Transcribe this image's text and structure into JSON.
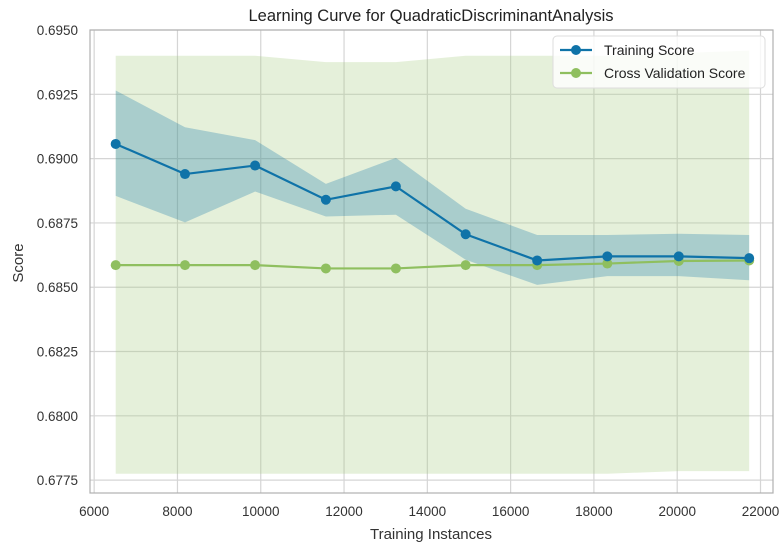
{
  "chart_data": {
    "type": "line",
    "title": "Learning Curve for QuadraticDiscriminantAnalysis",
    "xlabel": "Training Instances",
    "ylabel": "Score",
    "xlim": [
      5900,
      22300
    ],
    "ylim": [
      0.677,
      0.695
    ],
    "xticks": [
      6000,
      8000,
      10000,
      12000,
      14000,
      16000,
      18000,
      20000,
      22000
    ],
    "yticks": [
      0.6775,
      0.68,
      0.6825,
      0.685,
      0.6875,
      0.69,
      0.6925,
      0.695
    ],
    "grid": true,
    "legend_position": "top-right",
    "x": [
      6517,
      8181,
      9864,
      11564,
      13245,
      14920,
      16637,
      18322,
      20037,
      21728
    ],
    "series": [
      {
        "name": "Training Score",
        "color": "#0f73a8",
        "band_color": "#0f73a8",
        "values": [
          0.69057,
          0.6894,
          0.68973,
          0.6884,
          0.68892,
          0.68706,
          0.68604,
          0.6862,
          0.6862,
          0.68613
        ],
        "upper": [
          0.69265,
          0.69122,
          0.69072,
          0.68902,
          0.69003,
          0.68805,
          0.68703,
          0.68703,
          0.68708,
          0.68703
        ],
        "lower": [
          0.68855,
          0.68752,
          0.68872,
          0.68775,
          0.68782,
          0.68607,
          0.68509,
          0.68543,
          0.68543,
          0.68527
        ]
      },
      {
        "name": "Cross Validation Score",
        "color": "#8fbf5f",
        "band_color": "#a8cc84",
        "values": [
          0.68586,
          0.68586,
          0.68586,
          0.68573,
          0.68573,
          0.68586,
          0.68586,
          0.68592,
          0.68602,
          0.68604
        ],
        "upper": [
          0.694,
          0.694,
          0.694,
          0.69375,
          0.69375,
          0.694,
          0.694,
          0.694,
          0.6941,
          0.6942
        ],
        "lower": [
          0.67775,
          0.67775,
          0.67775,
          0.67775,
          0.67775,
          0.67775,
          0.67775,
          0.67775,
          0.67785,
          0.67785
        ]
      }
    ]
  }
}
